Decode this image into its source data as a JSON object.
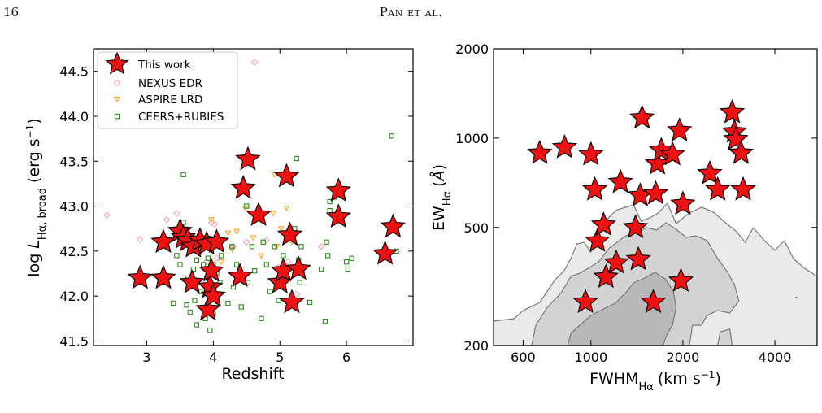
{
  "page": {
    "number": "16",
    "running_header": "Pan et al."
  },
  "chart_data": [
    {
      "type": "scatter",
      "xlabel": "Redshift",
      "ylabel": "log L_{Hα, broad} (erg s⁻¹)",
      "xlim": [
        2.2,
        7.0
      ],
      "ylim": [
        41.45,
        44.75
      ],
      "xticks": [
        3,
        4,
        5,
        6
      ],
      "yticks": [
        41.5,
        42.0,
        42.5,
        43.0,
        43.5,
        44.0,
        44.5
      ],
      "ytick_labels": [
        "41.5",
        "42.0",
        "42.5",
        "43.0",
        "43.5",
        "44.0",
        "44.5"
      ],
      "legend_position": "top-left",
      "series": [
        {
          "name": "This work",
          "marker": "star",
          "color": "#ee1111",
          "points": [
            [
              2.9,
              42.2
            ],
            [
              3.25,
              42.2
            ],
            [
              3.25,
              42.6
            ],
            [
              3.5,
              42.72
            ],
            [
              3.55,
              42.65
            ],
            [
              3.62,
              42.62
            ],
            [
              3.68,
              42.15
            ],
            [
              3.7,
              42.55
            ],
            [
              3.8,
              42.62
            ],
            [
              3.9,
              42.58
            ],
            [
              3.92,
              41.85
            ],
            [
              3.95,
              42.1
            ],
            [
              3.97,
              42.28
            ],
            [
              4.0,
              42.0
            ],
            [
              4.05,
              42.6
            ],
            [
              4.4,
              42.22
            ],
            [
              4.45,
              43.2
            ],
            [
              4.52,
              43.52
            ],
            [
              4.68,
              42.9
            ],
            [
              5.0,
              42.15
            ],
            [
              5.05,
              42.28
            ],
            [
              5.1,
              43.33
            ],
            [
              5.15,
              42.68
            ],
            [
              5.18,
              41.93
            ],
            [
              5.28,
              42.3
            ],
            [
              5.88,
              43.17
            ],
            [
              5.88,
              42.88
            ],
            [
              6.58,
              42.47
            ],
            [
              6.7,
              42.77
            ]
          ]
        },
        {
          "name": "NEXUS EDR",
          "marker": "diamond",
          "color": "#f4a6b4",
          "points": [
            [
              2.4,
              42.9
            ],
            [
              2.9,
              42.63
            ],
            [
              3.3,
              42.85
            ],
            [
              3.45,
              42.92
            ],
            [
              3.55,
              42.55
            ],
            [
              3.8,
              42.5
            ],
            [
              3.9,
              42.38
            ],
            [
              3.97,
              42.82
            ],
            [
              4.02,
              42.8
            ],
            [
              4.05,
              42.42
            ],
            [
              4.3,
              42.55
            ],
            [
              4.5,
              42.6
            ],
            [
              4.62,
              44.6
            ],
            [
              4.8,
              42.62
            ],
            [
              4.98,
              42.32
            ],
            [
              5.05,
              42.2
            ],
            [
              5.12,
              42.38
            ],
            [
              5.25,
              42.02
            ],
            [
              5.62,
              42.55
            ]
          ]
        },
        {
          "name": "ASPIRE LRD",
          "marker": "triangle-down",
          "color": "#f5a623",
          "points": [
            [
              3.97,
              42.85
            ],
            [
              4.12,
              42.38
            ],
            [
              4.22,
              42.7
            ],
            [
              4.28,
              42.52
            ],
            [
              4.35,
              42.72
            ],
            [
              4.48,
              42.98
            ],
            [
              4.6,
              42.65
            ],
            [
              4.72,
              42.45
            ],
            [
              4.9,
              42.92
            ],
            [
              4.92,
              43.35
            ],
            [
              4.95,
              42.55
            ],
            [
              5.02,
              42.75
            ],
            [
              5.1,
              42.98
            ],
            [
              5.18,
              42.6
            ]
          ]
        },
        {
          "name": "CEERS+RUBIES",
          "marker": "square",
          "color": "#2a8a1a",
          "points": [
            [
              3.4,
              41.92
            ],
            [
              3.45,
              42.45
            ],
            [
              3.5,
              42.35
            ],
            [
              3.55,
              42.82
            ],
            [
              3.55,
              43.35
            ],
            [
              3.6,
              41.9
            ],
            [
              3.62,
              42.2
            ],
            [
              3.65,
              41.82
            ],
            [
              3.7,
              42.3
            ],
            [
              3.72,
              41.95
            ],
            [
              3.75,
              42.4
            ],
            [
              3.75,
              41.68
            ],
            [
              3.78,
              42.5
            ],
            [
              3.8,
              42.05
            ],
            [
              3.85,
              42.35
            ],
            [
              3.88,
              41.75
            ],
            [
              3.9,
              42.2
            ],
            [
              3.92,
              42.42
            ],
            [
              3.95,
              41.62
            ],
            [
              4.0,
              42.35
            ],
            [
              4.0,
              41.8
            ],
            [
              4.05,
              42.25
            ],
            [
              4.1,
              42.15
            ],
            [
              4.12,
              42.45
            ],
            [
              4.22,
              41.92
            ],
            [
              4.28,
              42.55
            ],
            [
              4.3,
              42.1
            ],
            [
              4.35,
              42.35
            ],
            [
              4.42,
              41.88
            ],
            [
              4.5,
              43.0
            ],
            [
              4.52,
              42.15
            ],
            [
              4.58,
              42.55
            ],
            [
              4.62,
              42.28
            ],
            [
              4.72,
              41.75
            ],
            [
              4.75,
              42.6
            ],
            [
              4.8,
              42.35
            ],
            [
              4.85,
              42.05
            ],
            [
              4.92,
              42.55
            ],
            [
              4.98,
              41.95
            ],
            [
              5.05,
              42.45
            ],
            [
              5.15,
              42.65
            ],
            [
              5.22,
              42.75
            ],
            [
              5.25,
              43.53
            ],
            [
              5.28,
              42.4
            ],
            [
              5.3,
              42.15
            ],
            [
              5.32,
              42.55
            ],
            [
              5.45,
              41.93
            ],
            [
              5.62,
              42.3
            ],
            [
              5.68,
              41.72
            ],
            [
              5.7,
              42.6
            ],
            [
              5.72,
              42.45
            ],
            [
              5.75,
              42.95
            ],
            [
              5.75,
              43.05
            ],
            [
              5.82,
              43.1
            ],
            [
              6.0,
              42.38
            ],
            [
              6.02,
              42.3
            ],
            [
              6.08,
              42.42
            ],
            [
              6.68,
              43.78
            ],
            [
              6.75,
              42.5
            ]
          ]
        }
      ]
    },
    {
      "type": "scatter",
      "xlabel": "FWHM_{Hα} (km s⁻¹)",
      "ylabel": "EW_{Hα} (Å)",
      "xscale": "log",
      "yscale": "log",
      "xlim": [
        480,
        5500
      ],
      "ylim": [
        200,
        2000
      ],
      "xticks": [
        600,
        1000,
        2000,
        4000
      ],
      "yticks": [
        200,
        500,
        1000,
        2000
      ],
      "contour_fill_colors": [
        "#eaeaea",
        "#d3d3d3",
        "#b8b8b8"
      ],
      "contour_line_color": "#7a7a7a",
      "series": [
        {
          "name": "This work",
          "marker": "star",
          "color": "#ee1111",
          "points": [
            [
              680,
              890
            ],
            [
              820,
              930
            ],
            [
              1000,
              880
            ],
            [
              1030,
              670
            ],
            [
              1050,
              450
            ],
            [
              1100,
              510
            ],
            [
              1120,
              340
            ],
            [
              1210,
              380
            ],
            [
              1250,
              710
            ],
            [
              1400,
              500
            ],
            [
              1430,
              390
            ],
            [
              1450,
              640
            ],
            [
              1470,
              1170
            ],
            [
              1600,
              280
            ],
            [
              1630,
              650
            ],
            [
              1650,
              820
            ],
            [
              1700,
              910
            ],
            [
              1850,
              880
            ],
            [
              1950,
              1060
            ],
            [
              1970,
              330
            ],
            [
              2000,
              600
            ],
            [
              2450,
              760
            ],
            [
              2600,
              670
            ],
            [
              2900,
              1220
            ],
            [
              2950,
              1050
            ],
            [
              2980,
              990
            ],
            [
              3100,
              890
            ],
            [
              3150,
              670
            ],
            [
              960,
              280
            ]
          ]
        }
      ]
    }
  ]
}
